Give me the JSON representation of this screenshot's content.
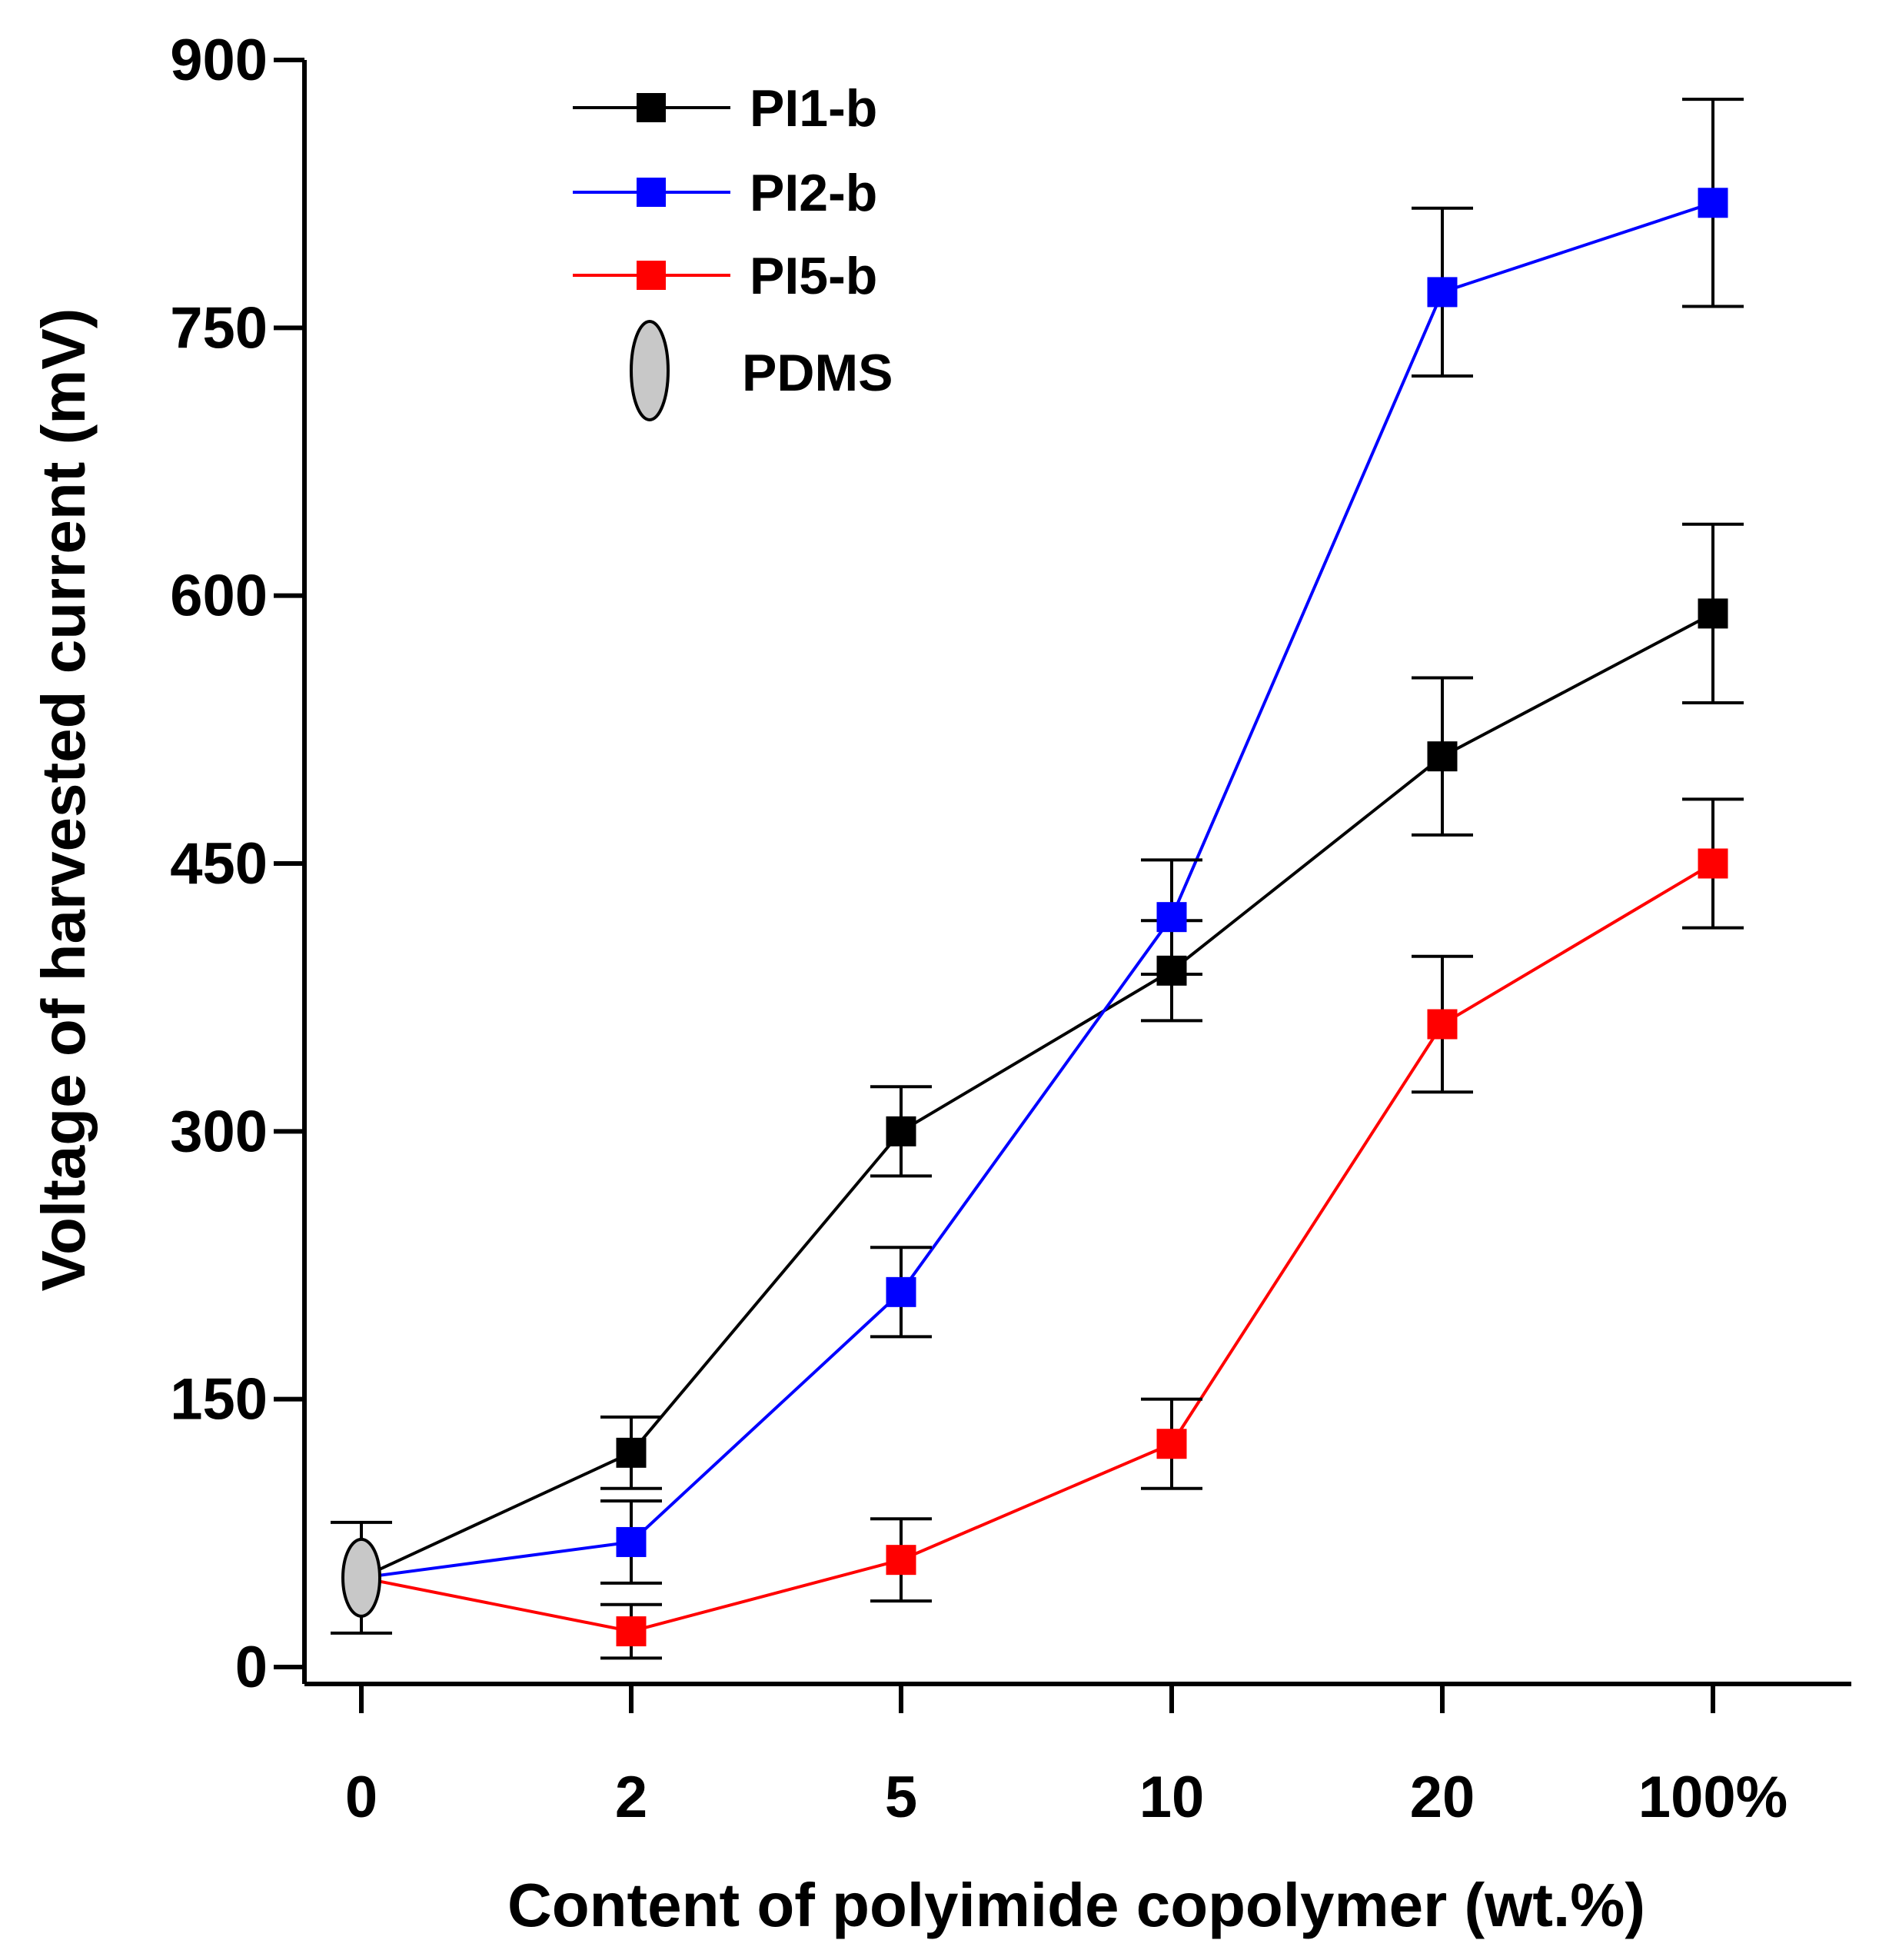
{
  "chart_data": {
    "type": "line",
    "xlabel": "Content of polyimide copolymer (wt.%)",
    "ylabel": "Voltage of harvested current (mV)",
    "categories": [
      "0",
      "2",
      "5",
      "10",
      "20",
      "100%"
    ],
    "ylim": [
      0,
      900
    ],
    "yticks": [
      0,
      150,
      300,
      450,
      600,
      750,
      900
    ],
    "grid": false,
    "legend_position": "top-left",
    "pdms": {
      "name": "PDMS",
      "x_index": 0,
      "value": 50,
      "err": 31,
      "color": "#c8c8c8"
    },
    "series": [
      {
        "name": "PI1-b",
        "color": "#000000",
        "x_index": [
          0,
          1,
          2,
          3,
          4,
          5
        ],
        "values": [
          50,
          120,
          300,
          390,
          510,
          590
        ],
        "errors": [
          null,
          20,
          25,
          28,
          44,
          50
        ]
      },
      {
        "name": "PI2-b",
        "color": "#0000ff",
        "x_index": [
          0,
          1,
          2,
          3,
          4,
          5
        ],
        "values": [
          50,
          70,
          210,
          420,
          770,
          820
        ],
        "errors": [
          null,
          23,
          25,
          32,
          47,
          58
        ]
      },
      {
        "name": "PI5-b",
        "color": "#ff0000",
        "x_index": [
          0,
          1,
          2,
          3,
          4,
          5
        ],
        "values": [
          50,
          20,
          60,
          125,
          360,
          450
        ],
        "errors": [
          null,
          15,
          23,
          25,
          38,
          36
        ]
      }
    ]
  }
}
